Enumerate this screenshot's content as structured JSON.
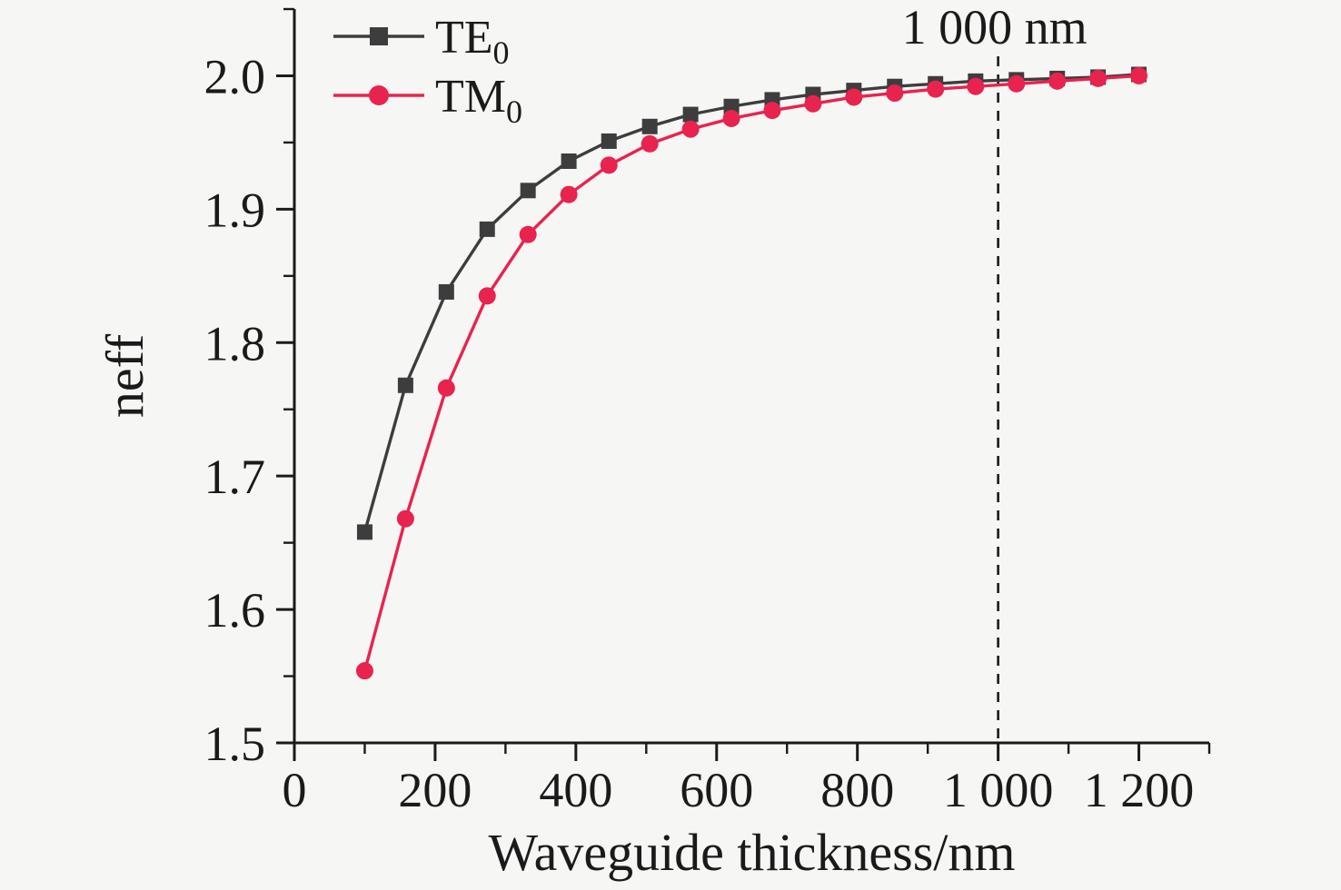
{
  "chart_data": {
    "type": "line",
    "title": "",
    "xlabel": "Waveguide thickness/nm",
    "ylabel": "neff",
    "xlim": [
      0,
      1300
    ],
    "ylim": [
      1.5,
      2.05
    ],
    "grid": false,
    "legend_position": "top-left",
    "background_color": "#f6f6f5",
    "axis_color": "#1a1a1a",
    "x_major_ticks": [
      0,
      200,
      400,
      600,
      800,
      1000,
      1200
    ],
    "x_tick_labels": [
      "0",
      "200",
      "400",
      "600",
      "800",
      "1 000",
      "1 200"
    ],
    "x_minor_step": 100,
    "y_major_ticks": [
      1.5,
      1.6,
      1.7,
      1.8,
      1.9,
      2.0
    ],
    "y_tick_labels": [
      "1.5",
      "1.6",
      "1.7",
      "1.8",
      "1.9",
      "2.0"
    ],
    "y_minor_step": 0.05,
    "x": [
      100,
      158,
      216,
      274,
      332,
      390,
      447,
      505,
      563,
      621,
      679,
      737,
      795,
      853,
      911,
      968,
      1026,
      1084,
      1142,
      1200
    ],
    "series": [
      {
        "name": "TE0",
        "label_main": "TE",
        "label_sub": "0",
        "color": "#3d3d3d",
        "marker": "square",
        "values": [
          1.658,
          1.768,
          1.838,
          1.885,
          1.914,
          1.936,
          1.951,
          1.962,
          1.971,
          1.977,
          1.982,
          1.986,
          1.989,
          1.992,
          1.994,
          1.996,
          1.997,
          1.998,
          1.999,
          2.001
        ]
      },
      {
        "name": "TM0",
        "label_main": "TM",
        "label_sub": "0",
        "color": "#e8234e",
        "marker": "circle",
        "values": [
          1.554,
          1.668,
          1.766,
          1.835,
          1.881,
          1.911,
          1.933,
          1.949,
          1.96,
          1.968,
          1.974,
          1.979,
          1.984,
          1.987,
          1.99,
          1.992,
          1.994,
          1.996,
          1.998,
          2.0
        ]
      }
    ],
    "annotation": {
      "text": "1 000 nm",
      "x_value": 1000,
      "line_style": "dashed",
      "color": "#1a1a1a"
    }
  }
}
